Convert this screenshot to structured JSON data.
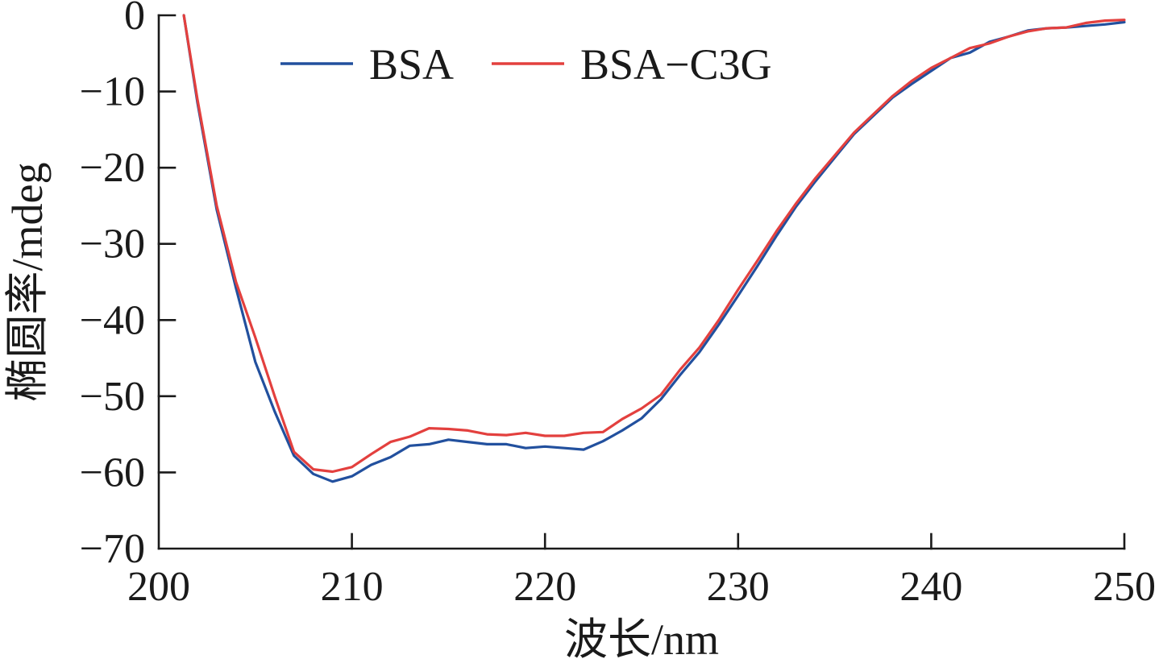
{
  "chart_data": {
    "type": "line",
    "xlabel": "波长/nm",
    "ylabel": "椭圆率/mdeg",
    "xlim": [
      200,
      250
    ],
    "ylim": [
      -70,
      0
    ],
    "xticks": [
      200,
      210,
      220,
      230,
      240,
      250
    ],
    "xtick_labels": [
      "200",
      "210",
      "220",
      "230",
      "240",
      "250"
    ],
    "yticks": [
      0,
      -10,
      -20,
      -30,
      -40,
      -50,
      -60,
      -70
    ],
    "ytick_labels": [
      "0",
      "−10",
      "−20",
      "−30",
      "−40",
      "−50",
      "−60",
      "−70"
    ],
    "grid": false,
    "legend": "top",
    "x": [
      201.3,
      202,
      203,
      204,
      205,
      206,
      207,
      208,
      209,
      210,
      211,
      212,
      213,
      214,
      215,
      216,
      217,
      218,
      219,
      220,
      221,
      222,
      223,
      224,
      225,
      226,
      227,
      228,
      229,
      230,
      231,
      232,
      233,
      234,
      235,
      236,
      237,
      238,
      239,
      240,
      241,
      242,
      243,
      244,
      245,
      246,
      247,
      248,
      249,
      250
    ],
    "series": [
      {
        "name": "BSA",
        "color": "#22509e",
        "values": [
          0,
          -11.4,
          -25.5,
          -35.8,
          -45.5,
          -52.0,
          -57.8,
          -60.2,
          -61.2,
          -60.5,
          -59.0,
          -58.0,
          -56.5,
          -56.3,
          -55.7,
          -56.0,
          -56.3,
          -56.3,
          -56.8,
          -56.6,
          -56.8,
          -57.0,
          -55.9,
          -54.5,
          -52.9,
          -50.4,
          -47.2,
          -44.2,
          -40.6,
          -36.8,
          -32.9,
          -28.9,
          -25.1,
          -21.8,
          -18.7,
          -15.6,
          -13.2,
          -10.8,
          -9.0,
          -7.3,
          -5.6,
          -4.9,
          -3.5,
          -2.8,
          -2.0,
          -1.7,
          -1.6,
          -1.4,
          -1.2,
          -0.9
        ]
      },
      {
        "name": "BSA−C3G",
        "color": "#e3403e",
        "values": [
          0,
          -11.0,
          -25.0,
          -35.0,
          -42.3,
          -50.0,
          -57.3,
          -59.6,
          -59.9,
          -59.3,
          -57.6,
          -56.0,
          -55.3,
          -54.2,
          -54.3,
          -54.5,
          -55.0,
          -55.1,
          -54.8,
          -55.2,
          -55.2,
          -54.8,
          -54.7,
          -53.0,
          -51.6,
          -49.8,
          -46.5,
          -43.6,
          -40.0,
          -36.0,
          -32.2,
          -28.3,
          -24.7,
          -21.4,
          -18.4,
          -15.4,
          -13.0,
          -10.6,
          -8.6,
          -6.9,
          -5.6,
          -4.3,
          -3.7,
          -2.8,
          -2.1,
          -1.7,
          -1.6,
          -1.0,
          -0.7,
          -0.6
        ]
      }
    ]
  }
}
